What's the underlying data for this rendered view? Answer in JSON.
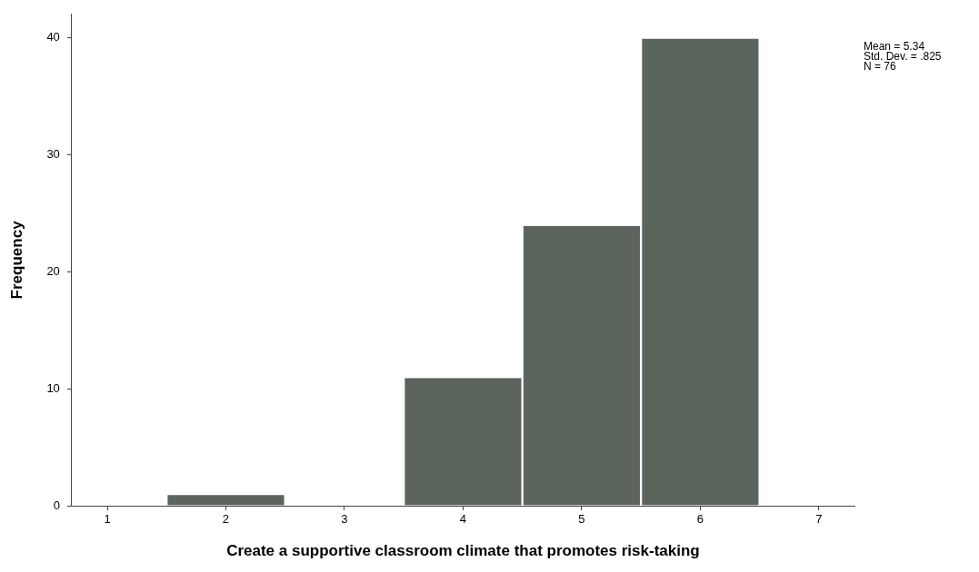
{
  "chart_data": {
    "type": "histogram",
    "xlabel": "Create a supportive classroom climate that promotes risk-taking",
    "ylabel": "Frequency",
    "bins": [
      1.5,
      2.5,
      3.5,
      4.5,
      5.5,
      6.5
    ],
    "values": [
      1,
      0,
      11,
      24,
      40
    ],
    "color": "#5b655e",
    "xlim": [
      0.7,
      7.3
    ],
    "xticks": [
      1,
      2,
      3,
      4,
      5,
      6,
      7
    ],
    "ylim": [
      0,
      42
    ],
    "yticks": [
      0,
      10,
      20,
      30,
      40
    ],
    "grid": false,
    "legend": false,
    "annotations": [
      "Mean = 5.34",
      "Std. Dev. = .825",
      "N = 76"
    ]
  }
}
